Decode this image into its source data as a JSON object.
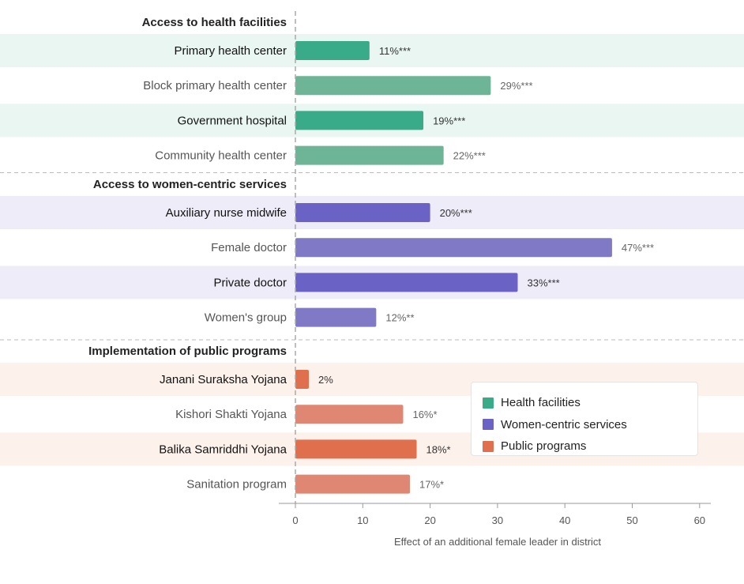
{
  "chart_data": {
    "type": "bar",
    "orientation": "horizontal",
    "xlabel": "Effect of an additional female leader in district",
    "xlim": [
      0,
      60
    ],
    "xticks": [
      0,
      10,
      20,
      30,
      40,
      50,
      60
    ],
    "groups": [
      {
        "title": "Access to health facilities",
        "series": "Health facilities",
        "bars": [
          {
            "label": "Primary health center",
            "value": 11,
            "value_label": "11%***"
          },
          {
            "label": "Block primary health center",
            "value": 29,
            "value_label": "29%***"
          },
          {
            "label": "Government hospital",
            "value": 19,
            "value_label": "19%***"
          },
          {
            "label": "Community health center",
            "value": 22,
            "value_label": "22%***"
          }
        ]
      },
      {
        "title": "Access to women-centric services",
        "series": "Women-centric services",
        "bars": [
          {
            "label": "Auxiliary nurse midwife",
            "value": 20,
            "value_label": "20%***"
          },
          {
            "label": "Female doctor",
            "value": 47,
            "value_label": "47%***"
          },
          {
            "label": "Private doctor",
            "value": 33,
            "value_label": "33%***"
          },
          {
            "label": "Women's group",
            "value": 12,
            "value_label": "12%**"
          }
        ]
      },
      {
        "title": "Implementation of public programs",
        "series": "Public programs",
        "bars": [
          {
            "label": "Janani Suraksha Yojana",
            "value": 2,
            "value_label": "2%"
          },
          {
            "label": "Kishori Shakti Yojana",
            "value": 16,
            "value_label": "16%*"
          },
          {
            "label": "Balika Samriddhi Yojana",
            "value": 18,
            "value_label": "18%*"
          },
          {
            "label": "Sanitation program",
            "value": 17,
            "value_label": "17%*"
          }
        ]
      }
    ],
    "legend": {
      "placement": "bottom-right",
      "items": [
        {
          "name": "Health facilities",
          "color": "#3aab89"
        },
        {
          "name": "Women-centric services",
          "color": "#6a62c5"
        },
        {
          "name": "Public programs",
          "color": "#e0704d"
        }
      ]
    },
    "colors": {
      "Health facilities": {
        "strong": "#3aab89",
        "light": "#6db596",
        "band": "#eaf6f2"
      },
      "Women-centric services": {
        "strong": "#6a62c5",
        "light": "#7f79c6",
        "band": "#eeecf8"
      },
      "Public programs": {
        "strong": "#e0704d",
        "light": "#e08773",
        "band": "#fdf1ec"
      }
    }
  }
}
